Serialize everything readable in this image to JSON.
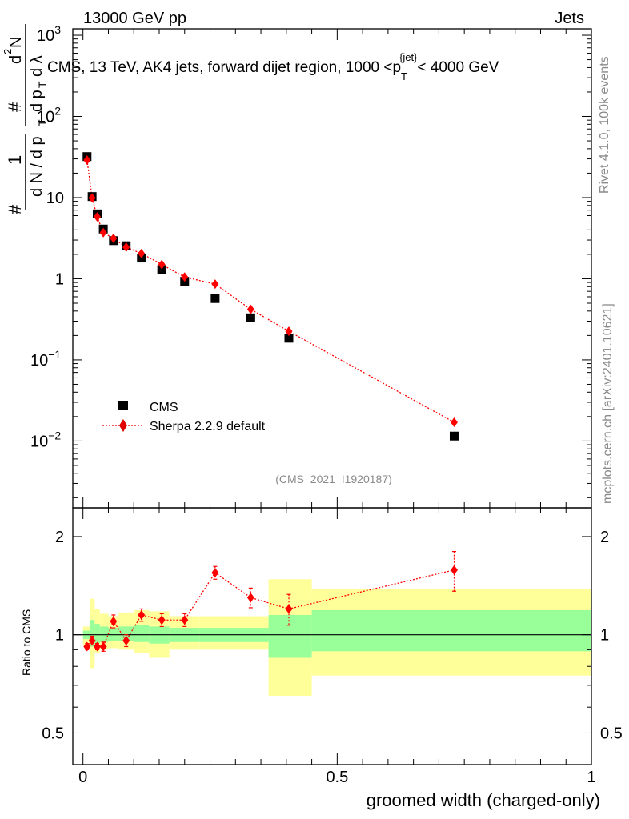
{
  "header": {
    "left": "13000 GeV pp",
    "right": "Jets"
  },
  "side_labels": {
    "rivet": "Rivet 4.1.0,  100k events",
    "mcplots": "mcplots.cern.ch [arXiv:2401.10621]"
  },
  "analysis_id": "(CMS_2021_I1920187)",
  "colors": {
    "cms": "#000000",
    "sherpa": "#ff0000",
    "band_outer": "#ffff99",
    "band_inner": "#99ff99"
  },
  "chart_data": [
    {
      "type": "scatter",
      "scale": "log",
      "title": "CMS, 13 TeV, AK4 jets, forward dijet region, 1000 <p_T^{jet}< 4000 GeV",
      "title_parts": {
        "main": "CMS, 13 TeV, AK4 jets, forward dijet region, 1000 <p",
        "sub": "T",
        "sup": "{jet}",
        "end": "< 4000 GeV"
      },
      "ylabel": "1 / (dN / dp_T) · d²N / (dp_T dλ)",
      "ylabel_parts": {
        "num1": "1",
        "den1": "d N / d p",
        "den1_sub": "T",
        "num2": "d",
        "num2_sup": "2",
        "num2_end": "N",
        "den2": "d p",
        "den2_sub": "T",
        "den2_end": "d λ",
        "hash": "#"
      },
      "xlim": [
        -0.02,
        1.0
      ],
      "ylim": [
        0.0015,
        1200
      ],
      "y_ticks": [
        {
          "v": 1000,
          "base": "10",
          "exp": "3"
        },
        {
          "v": 100,
          "base": "10",
          "exp": "2"
        },
        {
          "v": 10,
          "base": "10",
          "exp": ""
        },
        {
          "v": 1,
          "base": "1",
          "exp": ""
        },
        {
          "v": 0.1,
          "base": "10",
          "exp": "−1"
        },
        {
          "v": 0.01,
          "base": "10",
          "exp": "−2"
        }
      ],
      "series": [
        {
          "name": "CMS",
          "marker": "square",
          "x": [
            0.008,
            0.018,
            0.028,
            0.04,
            0.06,
            0.085,
            0.115,
            0.155,
            0.2,
            0.26,
            0.33,
            0.405,
            0.73
          ],
          "y": [
            32,
            10.3,
            6.3,
            4.1,
            2.95,
            2.55,
            1.8,
            1.3,
            0.93,
            0.57,
            0.33,
            0.185,
            0.0115
          ]
        },
        {
          "name": "Sherpa 2.2.9 default",
          "marker": "diamond",
          "line": "dotted",
          "x": [
            0.008,
            0.018,
            0.028,
            0.04,
            0.06,
            0.085,
            0.115,
            0.155,
            0.2,
            0.26,
            0.33,
            0.405,
            0.73
          ],
          "y": [
            29,
            9.9,
            5.8,
            3.7,
            3.15,
            2.45,
            2.05,
            1.5,
            1.05,
            0.86,
            0.42,
            0.225,
            0.017
          ]
        }
      ]
    },
    {
      "type": "scatter",
      "scale": "log",
      "ylabel": "Ratio to CMS",
      "xlabel": "groomed width (charged-only)",
      "xlim": [
        -0.02,
        1.0
      ],
      "ylim": [
        0.4,
        2.45
      ],
      "y_ticks": [
        {
          "v": 2,
          "label": "2"
        },
        {
          "v": 1,
          "label": "1"
        },
        {
          "v": 0.5,
          "label": "0.5"
        }
      ],
      "x_ticks": [
        {
          "v": 0,
          "label": "0"
        },
        {
          "v": 0.5,
          "label": "0.5"
        },
        {
          "v": 1,
          "label": "1"
        }
      ],
      "bands": [
        {
          "x0": 0.0,
          "x1": 0.013,
          "outer": [
            0.93,
            1.06
          ],
          "inner": [
            0.97,
            1.03
          ]
        },
        {
          "x0": 0.013,
          "x1": 0.023,
          "outer": [
            0.79,
            1.29
          ],
          "inner": [
            0.92,
            1.11
          ]
        },
        {
          "x0": 0.023,
          "x1": 0.033,
          "outer": [
            0.88,
            1.2
          ],
          "inner": [
            0.94,
            1.08
          ]
        },
        {
          "x0": 0.033,
          "x1": 0.05,
          "outer": [
            0.9,
            1.16
          ],
          "inner": [
            0.95,
            1.06
          ]
        },
        {
          "x0": 0.05,
          "x1": 0.07,
          "outer": [
            0.91,
            1.14
          ],
          "inner": [
            0.96,
            1.05
          ]
        },
        {
          "x0": 0.07,
          "x1": 0.1,
          "outer": [
            0.9,
            1.17
          ],
          "inner": [
            0.96,
            1.06
          ]
        },
        {
          "x0": 0.1,
          "x1": 0.13,
          "outer": [
            0.88,
            1.19
          ],
          "inner": [
            0.95,
            1.07
          ]
        },
        {
          "x0": 0.13,
          "x1": 0.17,
          "outer": [
            0.85,
            1.18
          ],
          "inner": [
            0.94,
            1.06
          ]
        },
        {
          "x0": 0.17,
          "x1": 0.23,
          "outer": [
            0.9,
            1.14
          ],
          "inner": [
            0.95,
            1.05
          ]
        },
        {
          "x0": 0.23,
          "x1": 0.29,
          "outer": [
            0.9,
            1.14
          ],
          "inner": [
            0.95,
            1.05
          ]
        },
        {
          "x0": 0.29,
          "x1": 0.365,
          "outer": [
            0.9,
            1.14
          ],
          "inner": [
            0.95,
            1.05
          ]
        },
        {
          "x0": 0.365,
          "x1": 0.45,
          "outer": [
            0.65,
            1.48
          ],
          "inner": [
            0.85,
            1.15
          ]
        },
        {
          "x0": 0.45,
          "x1": 1.0,
          "outer": [
            0.75,
            1.38
          ],
          "inner": [
            0.89,
            1.19
          ]
        }
      ],
      "series": [
        {
          "name": "Sherpa 2.2.9 default / CMS",
          "x": [
            0.008,
            0.018,
            0.028,
            0.04,
            0.06,
            0.085,
            0.115,
            0.155,
            0.2,
            0.26,
            0.33,
            0.405,
            0.73
          ],
          "y": [
            0.92,
            0.96,
            0.92,
            0.92,
            1.1,
            0.96,
            1.15,
            1.11,
            1.11,
            1.55,
            1.3,
            1.2,
            1.58
          ],
          "err": [
            0.02,
            0.03,
            0.02,
            0.03,
            0.05,
            0.04,
            0.05,
            0.05,
            0.05,
            0.07,
            0.09,
            0.13,
            0.22
          ]
        }
      ]
    }
  ]
}
